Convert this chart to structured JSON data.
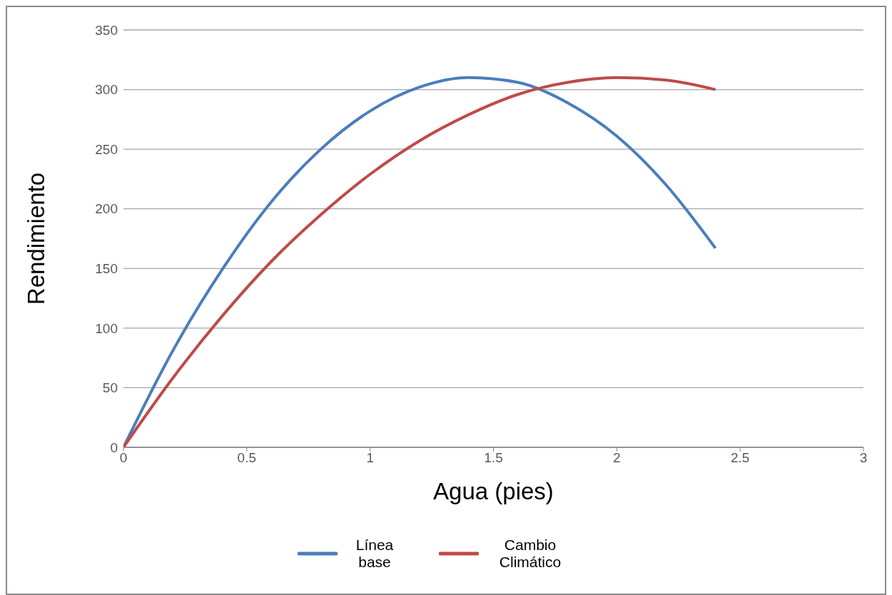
{
  "chart_data": {
    "type": "line",
    "xlabel": "Agua (pies)",
    "ylabel": "Rendimiento",
    "x": [
      0,
      0.2,
      0.4,
      0.6,
      0.8,
      1.0,
      1.2,
      1.4,
      1.6,
      1.8,
      2.0,
      2.2,
      2.4
    ],
    "series": [
      {
        "name": "Línea base",
        "color": "#4a7ebb",
        "values": [
          0,
          81,
          149,
          206,
          250,
          282,
          302,
          310,
          306,
          289,
          261,
          220,
          167
        ]
      },
      {
        "name": "Cambio Climático",
        "color": "#be4b48",
        "values": [
          0,
          58,
          110,
          156,
          195,
          229,
          257,
          279,
          296,
          306,
          310,
          308,
          300
        ]
      }
    ],
    "xlim": [
      0,
      3
    ],
    "xticks": [
      0,
      0.5,
      1,
      1.5,
      2,
      2.5,
      3
    ],
    "ylim": [
      0,
      350
    ],
    "yticks": [
      0,
      50,
      100,
      150,
      200,
      250,
      300,
      350
    ],
    "grid": "y",
    "legend": "bottom",
    "marker": "none",
    "line_style": "solid"
  }
}
